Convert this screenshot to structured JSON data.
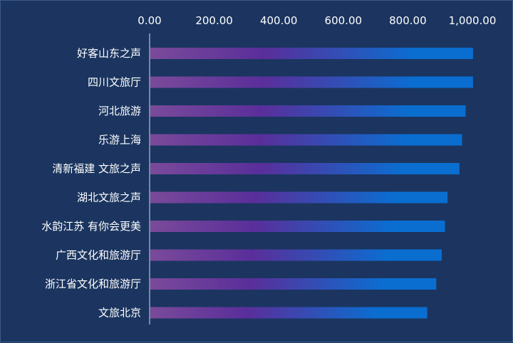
{
  "colors": {
    "background": "#1b3560",
    "axis": "#d9dee8",
    "text": "#ffffff",
    "bar_gradient_start": "#7a4a9a",
    "bar_gradient_mid": "#5a2e9a",
    "bar_gradient_end": "#0a6ed1"
  },
  "chart_data": {
    "type": "bar",
    "orientation": "horizontal",
    "title": "",
    "xlabel": "",
    "ylabel": "",
    "xlim": [
      0,
      1000
    ],
    "x_axis_position": "top",
    "x_ticks": [
      "0.00",
      "200.00",
      "400.00",
      "600.00",
      "800.00",
      "1,000.00"
    ],
    "grid": false,
    "legend": "none",
    "categories": [
      "好客山东之声",
      "四川文旅厅",
      "河北旅游",
      "乐游上海",
      "清新福建 文旅之声",
      "湖北文旅之声",
      "水韵江苏 有你会更美",
      "广西文化和旅游厅",
      "浙江省文化和旅游厅",
      "文旅北京"
    ],
    "values": [
      1002,
      1002,
      979,
      968,
      960,
      923,
      915,
      905,
      888,
      860
    ]
  }
}
